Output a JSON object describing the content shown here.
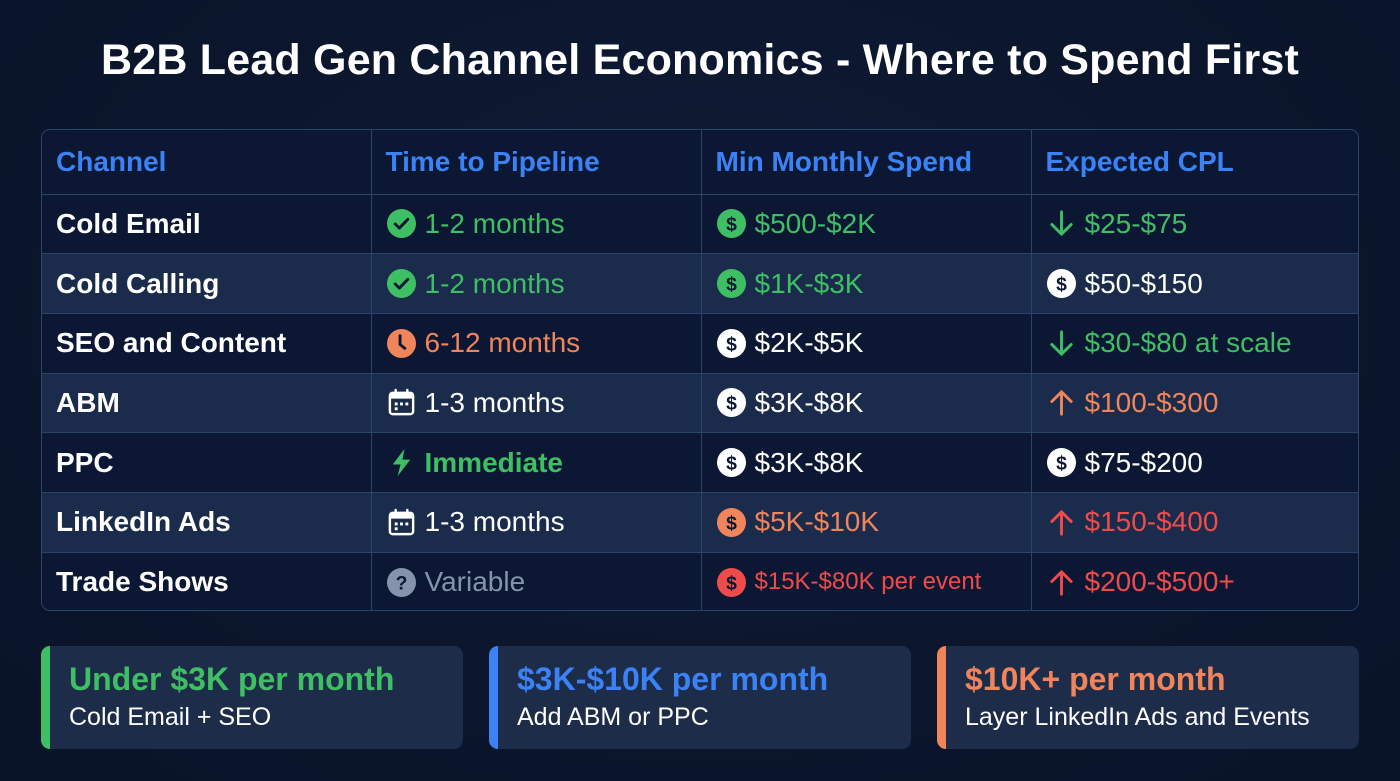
{
  "title": "B2B Lead Gen Channel Economics - Where to Spend First",
  "colors": {
    "background": "#0b162c",
    "header_text": "#3b82f6",
    "green": "#3fbf63",
    "orange": "#f0845a",
    "red": "#ef4b4b",
    "gray": "#8494ad",
    "border": "#2c4468"
  },
  "table": {
    "headers": [
      "Channel",
      "Time to Pipeline",
      "Min Monthly Spend",
      "Expected CPL"
    ],
    "rows": [
      {
        "channel": "Cold Email",
        "time": {
          "text": "1-2 months",
          "icon": "check-circle-icon",
          "color": "green"
        },
        "spend": {
          "text": "$500-$2K",
          "icon": "dollar-circle-icon",
          "color": "green"
        },
        "cpl": {
          "text": "$25-$75",
          "icon": "arrow-down-icon",
          "color": "green"
        }
      },
      {
        "channel": "Cold Calling",
        "time": {
          "text": "1-2 months",
          "icon": "check-circle-icon",
          "color": "green"
        },
        "spend": {
          "text": "$1K-$3K",
          "icon": "dollar-circle-icon",
          "color": "green"
        },
        "cpl": {
          "text": "$50-$150",
          "icon": "dollar-circle-icon",
          "color": "white"
        }
      },
      {
        "channel": "SEO and Content",
        "time": {
          "text": "6-12 months",
          "icon": "clock-icon",
          "color": "orange"
        },
        "spend": {
          "text": "$2K-$5K",
          "icon": "dollar-circle-icon",
          "color": "white"
        },
        "cpl": {
          "text": "$30-$80 at scale",
          "icon": "arrow-down-icon",
          "color": "green"
        }
      },
      {
        "channel": "ABM",
        "time": {
          "text": "1-3 months",
          "icon": "calendar-icon",
          "color": "white"
        },
        "spend": {
          "text": "$3K-$8K",
          "icon": "dollar-circle-icon",
          "color": "white"
        },
        "cpl": {
          "text": "$100-$300",
          "icon": "arrow-up-icon",
          "color": "orange"
        }
      },
      {
        "channel": "PPC",
        "time": {
          "text": "Immediate",
          "icon": "lightning-icon",
          "color": "green"
        },
        "spend": {
          "text": "$3K-$8K",
          "icon": "dollar-circle-icon",
          "color": "white"
        },
        "cpl": {
          "text": "$75-$200",
          "icon": "dollar-circle-icon",
          "color": "white"
        }
      },
      {
        "channel": "LinkedIn Ads",
        "time": {
          "text": "1-3 months",
          "icon": "calendar-icon",
          "color": "white"
        },
        "spend": {
          "text": "$5K-$10K",
          "icon": "dollar-circle-icon",
          "color": "orange"
        },
        "cpl": {
          "text": "$150-$400",
          "icon": "arrow-up-icon",
          "color": "red"
        }
      },
      {
        "channel": "Trade Shows",
        "time": {
          "text": "Variable",
          "icon": "question-circle-icon",
          "color": "gray"
        },
        "spend": {
          "text": "$15K-$80K per event",
          "icon": "dollar-circle-icon",
          "color": "red"
        },
        "cpl": {
          "text": "$200-$500+",
          "icon": "arrow-up-icon",
          "color": "red"
        }
      }
    ]
  },
  "cards": [
    {
      "heading": "Under $3K per month",
      "sub": "Cold Email + SEO",
      "color": "#3fbf63"
    },
    {
      "heading": "$3K-$10K per month",
      "sub": "Add ABM or PPC",
      "color": "#3b82f6"
    },
    {
      "heading": "$10K+ per month",
      "sub": "Layer LinkedIn Ads and Events",
      "color": "#f0845a"
    }
  ]
}
